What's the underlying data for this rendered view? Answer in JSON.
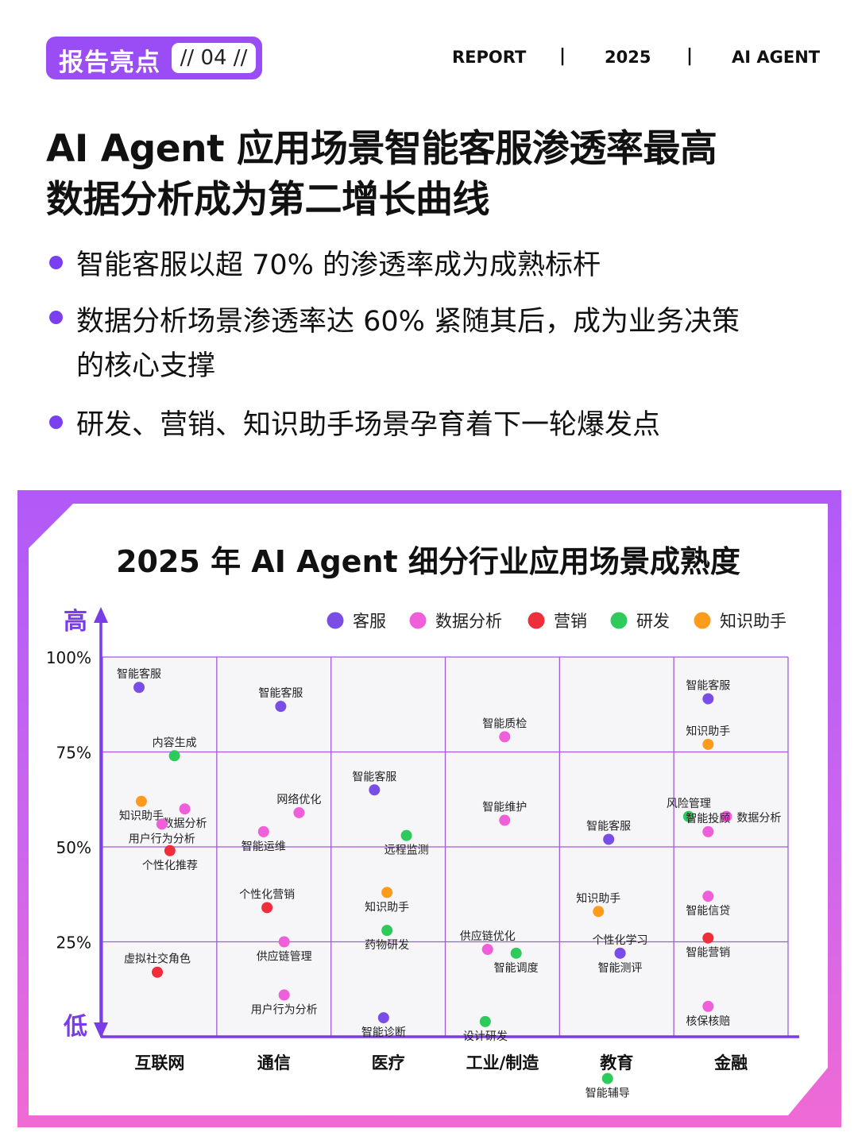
{
  "header": {
    "badge_label": "报告亮点",
    "badge_number": "// 04 //",
    "nav": [
      "REPORT",
      "2025",
      "AI AGENT"
    ],
    "separator": "|"
  },
  "headline": {
    "line1": "AI Agent 应用场景智能客服渗透率最高",
    "line2": "数据分析成为第二增长曲线"
  },
  "bullets": [
    {
      "lines": [
        "智能客服以超 70% 的渗透率成为成熟标杆"
      ]
    },
    {
      "lines": [
        "数据分析场景渗透率达 60% 紧随其后，成为业务决策",
        "的核心支撑"
      ]
    },
    {
      "lines": [
        "研发、营销、知识助手场景孕育着下一轮爆发点"
      ]
    }
  ],
  "colors": {
    "accent": "#9a4df5",
    "bullet": "#7b3ff0",
    "grid": "#a05be0",
    "axis": "#7a3be8"
  },
  "chart_data": {
    "type": "scatter",
    "title": "2025 年 AI Agent 细分行业应用场景成熟度",
    "y_high_label": "高",
    "y_low_label": "低",
    "ylim": [
      0,
      100
    ],
    "y_ticks": [
      "100%",
      "75%",
      "50%",
      "25%"
    ],
    "categories": [
      "互联网",
      "通信",
      "医疗",
      "工业/制造",
      "教育",
      "金融"
    ],
    "legend": [
      {
        "key": "cs",
        "name": "客服",
        "color": "#7a4ee6"
      },
      {
        "key": "da",
        "name": "数据分析",
        "color": "#ee5fd9"
      },
      {
        "key": "mk",
        "name": "营销",
        "color": "#ee2e3a"
      },
      {
        "key": "rd",
        "name": "研发",
        "color": "#2ecb5c"
      },
      {
        "key": "ka",
        "name": "知识助手",
        "color": "#ff9b1c"
      }
    ],
    "legend_position": "top-right",
    "grid": true,
    "points": [
      {
        "industry": 0,
        "x": 0.32,
        "y": 92,
        "series": "cs",
        "label": "智能客服",
        "pos": "above"
      },
      {
        "industry": 0,
        "x": 0.63,
        "y": 74,
        "series": "rd",
        "label": "内容生成",
        "pos": "above"
      },
      {
        "industry": 0,
        "x": 0.34,
        "y": 62,
        "series": "ka",
        "label": "知识助手",
        "pos": "below"
      },
      {
        "industry": 0,
        "x": 0.72,
        "y": 60,
        "series": "da",
        "label": "数据分析",
        "pos": "below"
      },
      {
        "industry": 0,
        "x": 0.52,
        "y": 56,
        "series": "da",
        "label": "用户行为分析",
        "pos": "below"
      },
      {
        "industry": 0,
        "x": 0.59,
        "y": 49,
        "series": "mk",
        "label": "个性化推荐",
        "pos": "below"
      },
      {
        "industry": 0,
        "x": 0.48,
        "y": 17,
        "series": "mk",
        "label": "虚拟社交角色",
        "pos": "above"
      },
      {
        "industry": 1,
        "x": 0.56,
        "y": 87,
        "series": "cs",
        "label": "智能客服",
        "pos": "above"
      },
      {
        "industry": 1,
        "x": 0.72,
        "y": 59,
        "series": "da",
        "label": "网络优化",
        "pos": "above"
      },
      {
        "industry": 1,
        "x": 0.41,
        "y": 54,
        "series": "da",
        "label": "智能运维",
        "pos": "below"
      },
      {
        "industry": 1,
        "x": 0.44,
        "y": 34,
        "series": "mk",
        "label": "个性化营销",
        "pos": "above"
      },
      {
        "industry": 1,
        "x": 0.59,
        "y": 25,
        "series": "da",
        "label": "供应链管理",
        "pos": "below"
      },
      {
        "industry": 1,
        "x": 0.59,
        "y": 11,
        "series": "da",
        "label": "用户行为分析",
        "pos": "below"
      },
      {
        "industry": 2,
        "x": 0.38,
        "y": 65,
        "series": "cs",
        "label": "智能客服",
        "pos": "above"
      },
      {
        "industry": 2,
        "x": 0.66,
        "y": 53,
        "series": "rd",
        "label": "远程监测",
        "pos": "below"
      },
      {
        "industry": 2,
        "x": 0.49,
        "y": 38,
        "series": "ka",
        "label": "知识助手",
        "pos": "below"
      },
      {
        "industry": 2,
        "x": 0.49,
        "y": 28,
        "series": "rd",
        "label": "药物研发",
        "pos": "below"
      },
      {
        "industry": 2,
        "x": 0.46,
        "y": 5,
        "series": "cs",
        "label": "智能诊断",
        "pos": "below"
      },
      {
        "industry": 3,
        "x": 0.52,
        "y": 79,
        "series": "da",
        "label": "智能质检",
        "pos": "above"
      },
      {
        "industry": 3,
        "x": 0.52,
        "y": 57,
        "series": "da",
        "label": "智能维护",
        "pos": "above"
      },
      {
        "industry": 3,
        "x": 0.37,
        "y": 23,
        "series": "da",
        "label": "供应链优化",
        "pos": "above"
      },
      {
        "industry": 3,
        "x": 0.62,
        "y": 22,
        "series": "rd",
        "label": "智能调度",
        "pos": "below"
      },
      {
        "industry": 3,
        "x": 0.35,
        "y": 4,
        "series": "rd",
        "label": "设计研发",
        "pos": "below"
      },
      {
        "industry": 4,
        "x": 0.43,
        "y": 52,
        "series": "cs",
        "label": "智能客服",
        "pos": "above"
      },
      {
        "industry": 4,
        "x": 0.34,
        "y": 33,
        "series": "ka",
        "label": "知识助手",
        "pos": "above"
      },
      {
        "industry": 4,
        "x": 0.53,
        "y": 22,
        "series": "da",
        "label": "智能测评",
        "pos": "below"
      },
      {
        "industry": 4,
        "x": 0.53,
        "y": 22,
        "series": "cs",
        "label": "个性化学习",
        "pos": "above"
      },
      {
        "industry": 4,
        "x": 0.42,
        "y": -11,
        "series": "rd",
        "label": "智能辅导",
        "pos": "below"
      },
      {
        "industry": 5,
        "x": 0.3,
        "y": 89,
        "series": "cs",
        "label": "智能客服",
        "pos": "above"
      },
      {
        "industry": 5,
        "x": 0.3,
        "y": 77,
        "series": "ka",
        "label": "知识助手",
        "pos": "above"
      },
      {
        "industry": 5,
        "x": 0.13,
        "y": 58,
        "series": "rd",
        "label": "风险管理",
        "pos": "above"
      },
      {
        "industry": 5,
        "x": 0.46,
        "y": 58,
        "series": "da",
        "label": "数据分析",
        "pos": "right"
      },
      {
        "industry": 5,
        "x": 0.3,
        "y": 54,
        "series": "da",
        "label": "智能投顾",
        "pos": "above"
      },
      {
        "industry": 5,
        "x": 0.3,
        "y": 37,
        "series": "da",
        "label": "智能信贷",
        "pos": "below"
      },
      {
        "industry": 5,
        "x": 0.3,
        "y": 26,
        "series": "mk",
        "label": "智能营销",
        "pos": "below"
      },
      {
        "industry": 5,
        "x": 0.3,
        "y": 8,
        "series": "da",
        "label": "核保核赔",
        "pos": "below"
      }
    ]
  }
}
